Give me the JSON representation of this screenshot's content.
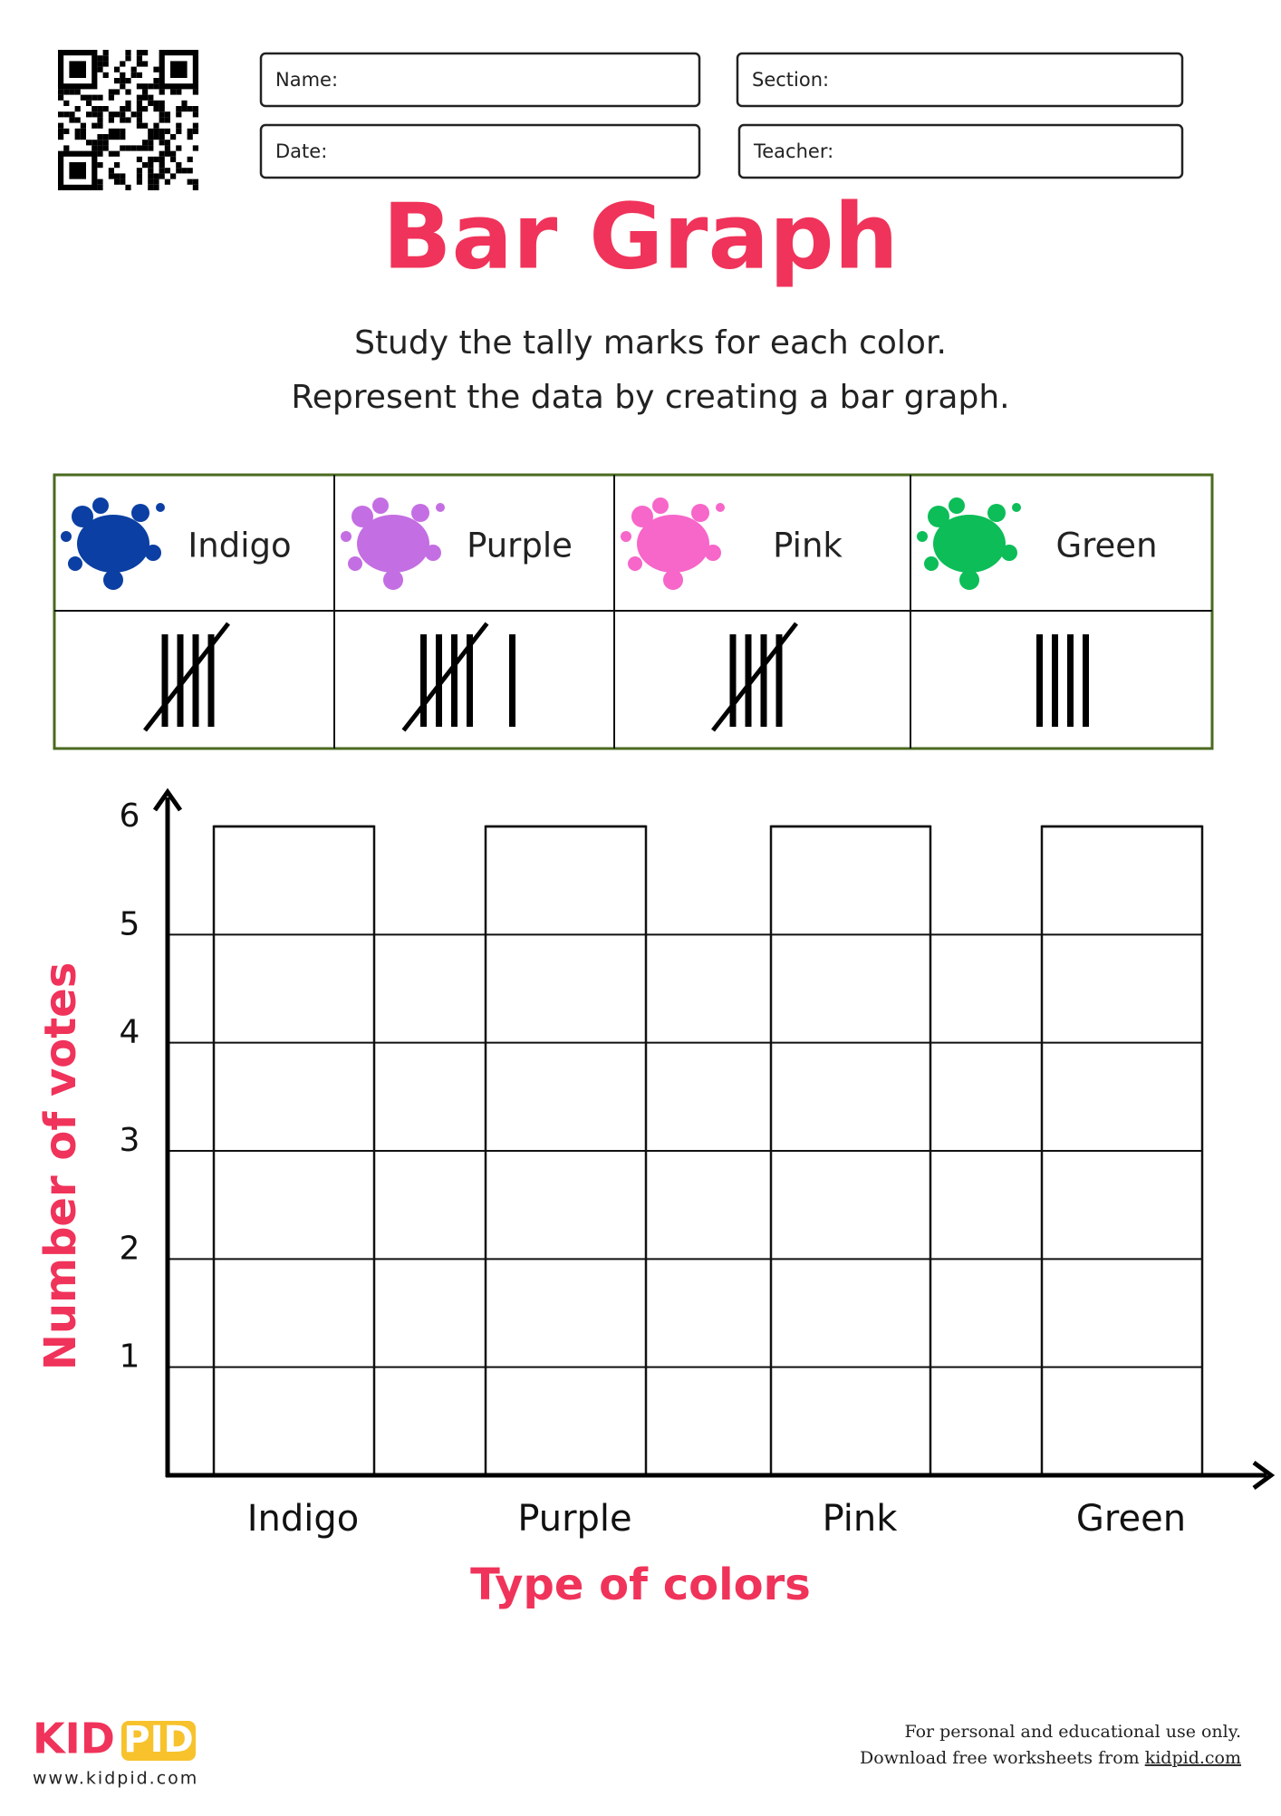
{
  "header": {
    "fields": [
      "Name:",
      "Section:",
      "Date:",
      "Teacher:"
    ],
    "title": "Bar Graph",
    "instructions": [
      "Study the tally marks for each color.",
      "Represent the data by creating a bar graph."
    ]
  },
  "tally_table": {
    "items": [
      {
        "label": "Indigo",
        "color": "#0b3fa3",
        "tally": 5
      },
      {
        "label": "Purple",
        "color": "#c46ee3",
        "tally": 6
      },
      {
        "label": "Pink",
        "color": "#f766c9",
        "tally": 5
      },
      {
        "label": "Green",
        "color": "#0cbd58",
        "tally": 4
      }
    ]
  },
  "graph": {
    "categories": [
      "Indigo",
      "Purple",
      "Pink",
      "Green"
    ],
    "ylim": [
      0,
      6
    ],
    "yticks": [
      1,
      2,
      3,
      4,
      5,
      6
    ],
    "x_label": "Type of colors",
    "y_label": "Number of votes"
  },
  "footer": {
    "logo": [
      "KID",
      "PID"
    ],
    "website": "www.kidpid.com",
    "note": "For personal and educational use only.",
    "download": "Download free worksheets from",
    "link": "kidpid.com"
  }
}
